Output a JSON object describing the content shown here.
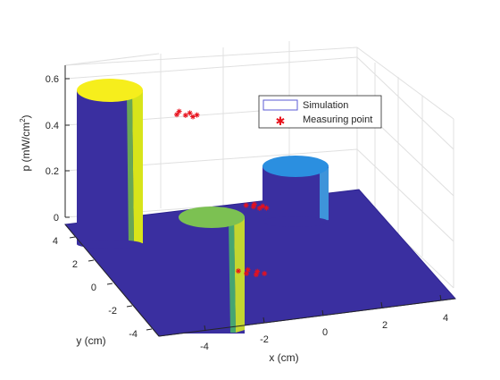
{
  "chart_data": {
    "type": "surface3d",
    "xlabel": "x (cm)",
    "ylabel": "y (cm)",
    "zlabel_html": "p (mW/cm²)",
    "zlabel_parts": {
      "base": "p (mW/cm",
      "sup": "2",
      "tail": ")"
    },
    "x_ticks": [
      "-4",
      "-2",
      "0",
      "2",
      "4"
    ],
    "y_ticks": [
      "-4",
      "-2",
      "0",
      "2",
      "4"
    ],
    "z_ticks": [
      "0",
      "0.2",
      "0.4",
      "0.6"
    ],
    "xlim": [
      -5,
      5
    ],
    "ylim": [
      -5,
      5
    ],
    "zlim": [
      0,
      0.7
    ],
    "grid": true,
    "legend": {
      "position": "top-right",
      "entries": [
        {
          "label": "Simulation",
          "marker": "line",
          "color": "#5b5bd6"
        },
        {
          "label": "Measuring point",
          "marker": "asterisk",
          "color": "#e8111c"
        }
      ]
    },
    "series": [
      {
        "name": "Simulation",
        "cylinders": [
          {
            "center_x": -3.5,
            "center_y": 3.5,
            "radius": 1.0,
            "height": 0.6,
            "top_color": "#f6ee1c"
          },
          {
            "center_x": -2.0,
            "center_y": -1.5,
            "radius": 1.0,
            "height": 0.0,
            "top_color": "#7cc152"
          },
          {
            "center_x": 1.0,
            "center_y": 1.8,
            "radius": 1.0,
            "height": 0.2,
            "top_color": "#2b8fe0"
          }
        ]
      },
      {
        "name": "Measuring point",
        "points": [
          {
            "x": -3.6,
            "y": 4.1,
            "z": 0.6
          },
          {
            "x": -4.2,
            "y": 3.6,
            "z": 0.6
          },
          {
            "x": -3.1,
            "y": 3.6,
            "z": 0.6
          },
          {
            "x": -3.7,
            "y": 3.3,
            "z": 0.6
          },
          {
            "x": -2.9,
            "y": 3.1,
            "z": 0.6
          },
          {
            "x": -3.4,
            "y": 2.9,
            "z": 0.6
          },
          {
            "x": -2.6,
            "y": -0.9,
            "z": 0.0
          },
          {
            "x": -1.8,
            "y": -0.9,
            "z": 0.0
          },
          {
            "x": -1.4,
            "y": -1.4,
            "z": 0.0
          },
          {
            "x": -2.4,
            "y": -1.5,
            "z": 0.0
          },
          {
            "x": -1.9,
            "y": -1.9,
            "z": 0.0
          },
          {
            "x": -1.2,
            "y": -1.9,
            "z": 0.0
          },
          {
            "x": 0.6,
            "y": 2.3,
            "z": 0.2
          },
          {
            "x": 1.3,
            "y": 2.3,
            "z": 0.2
          },
          {
            "x": 0.9,
            "y": 1.9,
            "z": 0.2
          },
          {
            "x": 1.6,
            "y": 1.8,
            "z": 0.2
          },
          {
            "x": 1.1,
            "y": 1.5,
            "z": 0.2
          },
          {
            "x": 1.6,
            "y": 1.4,
            "z": 0.2
          }
        ]
      }
    ]
  },
  "colors": {
    "surface": "#3a2fa0",
    "surface_edge": "#2c2390",
    "grid": "#e0e0e0",
    "axis": "#262626",
    "yellow_top": "#f6ee1c",
    "green_top": "#7cc152",
    "blue_top": "#2b8fe0",
    "marker": "#e8111c"
  }
}
